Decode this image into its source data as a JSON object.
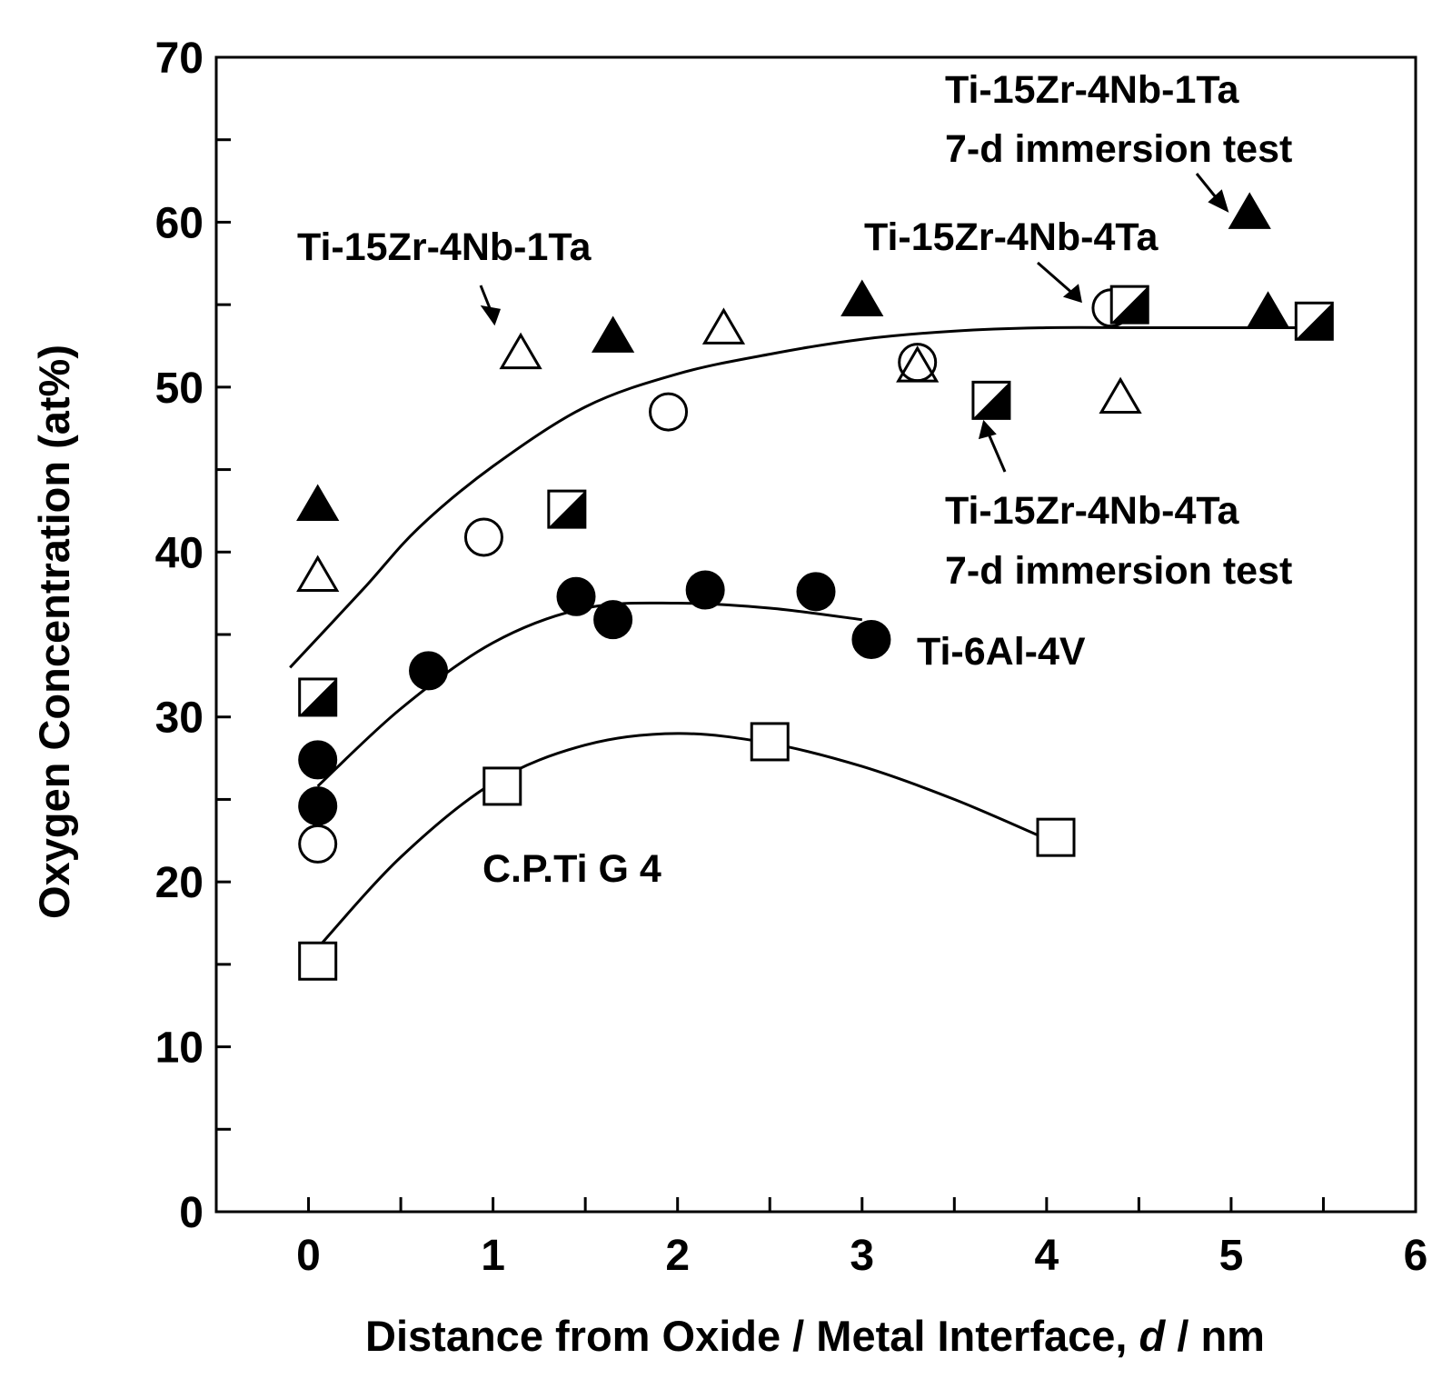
{
  "chart_data": {
    "type": "scatter",
    "xlabel_main": "Distance from Oxide / Metal Interface, ",
    "xlabel_var": "d",
    "xlabel_unit": " / nm",
    "ylabel": "Oxygen Concentration (at%)",
    "xlim": [
      -0.5,
      6
    ],
    "ylim": [
      0,
      70
    ],
    "x_ticks": [
      "0",
      "1",
      "2",
      "3",
      "4",
      "5",
      "6"
    ],
    "y_ticks": [
      "0",
      "10",
      "20",
      "30",
      "40",
      "50",
      "60",
      "70"
    ],
    "series": [
      {
        "name": "C.P.Ti G 4",
        "marker": "open-square",
        "points": [
          [
            0.05,
            15.2
          ],
          [
            1.05,
            25.8
          ],
          [
            2.5,
            28.5
          ],
          [
            4.05,
            22.7
          ]
        ],
        "fit": [
          [
            0.05,
            16.0
          ],
          [
            0.5,
            21.5
          ],
          [
            1.0,
            26.0
          ],
          [
            1.5,
            28.3
          ],
          [
            2.0,
            29.0
          ],
          [
            2.5,
            28.4
          ],
          [
            3.0,
            27.0
          ],
          [
            3.5,
            25.0
          ],
          [
            4.0,
            22.6
          ]
        ]
      },
      {
        "name": "Ti-6Al-4V",
        "marker": "filled-circle",
        "points": [
          [
            0.05,
            27.4
          ],
          [
            0.05,
            24.6
          ],
          [
            0.65,
            32.8
          ],
          [
            1.45,
            37.3
          ],
          [
            1.65,
            35.9
          ],
          [
            2.15,
            37.7
          ],
          [
            2.75,
            37.6
          ],
          [
            3.05,
            34.7
          ]
        ],
        "fit": [
          [
            0.05,
            25.8
          ],
          [
            0.5,
            30.5
          ],
          [
            1.0,
            34.5
          ],
          [
            1.5,
            36.6
          ],
          [
            2.0,
            36.9
          ],
          [
            2.5,
            36.6
          ],
          [
            3.0,
            35.9
          ]
        ]
      },
      {
        "name": "Ti-15Zr-4Nb-4Ta",
        "marker": "open-circle",
        "points": [
          [
            0.05,
            22.3
          ],
          [
            0.95,
            40.9
          ],
          [
            1.95,
            48.5
          ],
          [
            3.3,
            51.5
          ],
          [
            4.35,
            54.8
          ]
        ]
      },
      {
        "name": "Ti-15Zr-4Nb-1Ta",
        "marker": "open-triangle",
        "points": [
          [
            0.05,
            38.5
          ],
          [
            1.15,
            52.0
          ],
          [
            2.25,
            53.5
          ],
          [
            3.3,
            51.2
          ],
          [
            4.4,
            49.3
          ]
        ]
      },
      {
        "name": "Ti-15Zr-4Nb-1Ta 7-d immersion test",
        "marker": "filled-triangle",
        "points": [
          [
            0.05,
            42.8
          ],
          [
            1.65,
            53.0
          ],
          [
            3.0,
            55.2
          ],
          [
            5.1,
            60.5
          ],
          [
            5.2,
            54.5
          ]
        ]
      },
      {
        "name": "Ti-15Zr-4Nb-4Ta 7-d immersion test",
        "marker": "half-filled-square",
        "points": [
          [
            0.05,
            31.2
          ],
          [
            1.4,
            42.6
          ],
          [
            3.7,
            49.2
          ],
          [
            4.45,
            55.0
          ],
          [
            5.45,
            54.0
          ]
        ]
      }
    ],
    "upper_fit": [
      [
        -0.1,
        33.0
      ],
      [
        0.3,
        37.8
      ],
      [
        0.6,
        41.5
      ],
      [
        1.0,
        45.2
      ],
      [
        1.5,
        48.8
      ],
      [
        2.0,
        50.8
      ],
      [
        2.5,
        52.0
      ],
      [
        3.0,
        52.9
      ],
      [
        3.5,
        53.4
      ],
      [
        4.0,
        53.6
      ],
      [
        4.5,
        53.6
      ],
      [
        5.0,
        53.6
      ],
      [
        5.5,
        53.6
      ]
    ],
    "annotations": {
      "cp_ti": "C.P.Ti G 4",
      "ti6al4v": "Ti-6Al-4V",
      "zr1ta": "Ti-15Zr-4Nb-1Ta",
      "zr4ta": "Ti-15Zr-4Nb-4Ta",
      "zr1ta_imm_1": "Ti-15Zr-4Nb-1Ta",
      "zr1ta_imm_2": "7-d immersion test",
      "zr4ta_imm_1": "Ti-15Zr-4Nb-4Ta",
      "zr4ta_imm_2": "7-d immersion test"
    }
  }
}
